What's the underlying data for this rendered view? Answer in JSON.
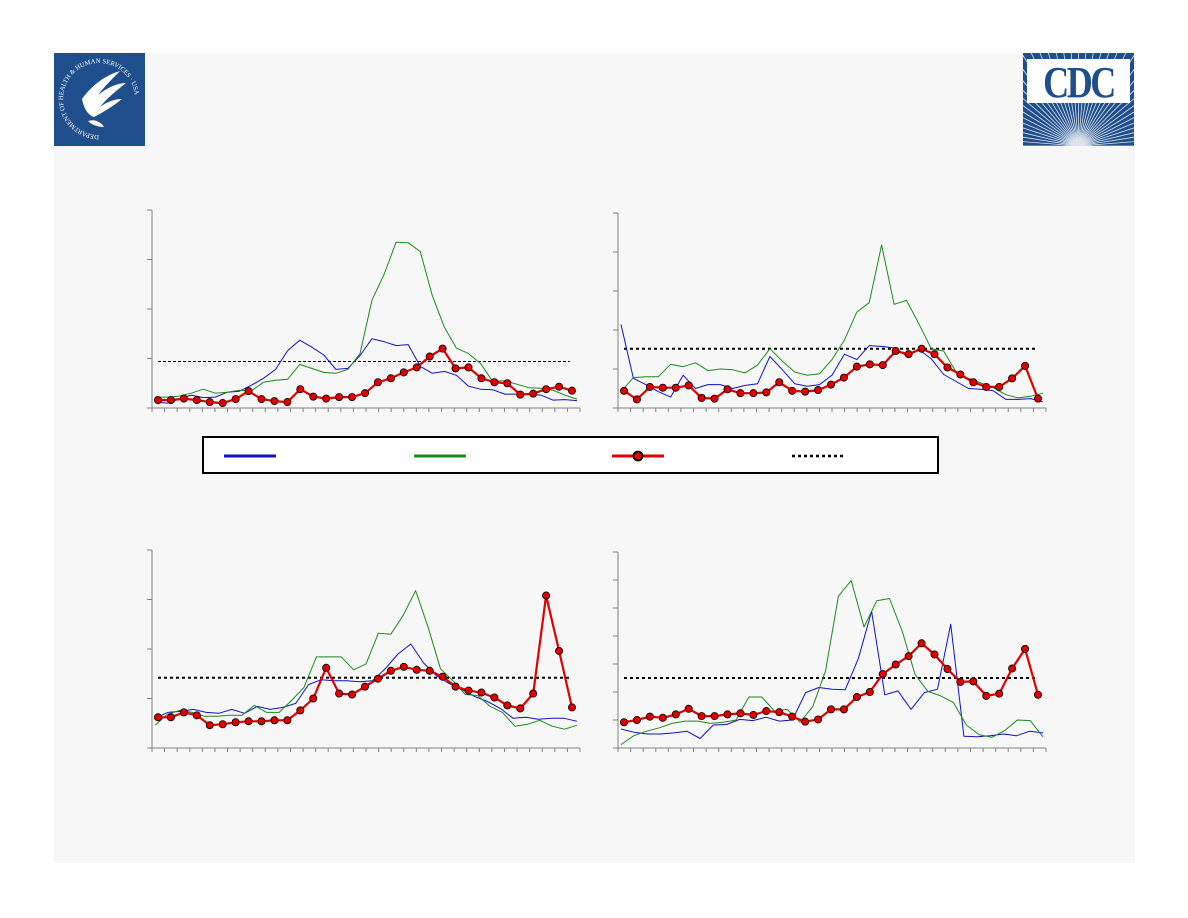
{
  "logos": {
    "hhs": {
      "ring_text": "DEPARTMENT OF HEALTH & HUMAN SERVICES · USA",
      "bg": "#1f4e8c"
    },
    "cdc": {
      "text": "CDC",
      "bg": "#1f4e8c"
    }
  },
  "colors": {
    "blue": "#1010c8",
    "green": "#1a8a1a",
    "red": "#e00000",
    "dotted": "#000000",
    "axis": "#808080"
  },
  "legend": [
    {
      "key": "blue",
      "style": "line",
      "label": ""
    },
    {
      "key": "green",
      "style": "line",
      "label": ""
    },
    {
      "key": "red",
      "style": "line-marker",
      "label": ""
    },
    {
      "key": "dotted",
      "style": "dotted",
      "label": ""
    }
  ],
  "chart_data": [
    {
      "type": "line",
      "title": "",
      "xlabel": "",
      "ylabel": "",
      "ylim": [
        0,
        4
      ],
      "yticks": [
        0,
        1,
        2,
        3,
        4
      ],
      "n_xticks": 34,
      "threshold": 0.94,
      "series": [
        {
          "key": "blue",
          "values": [
            0.12,
            0.1,
            0.18,
            0.26,
            0.21,
            0.22,
            0.32,
            0.34,
            0.46,
            0.6,
            0.78,
            1.16,
            1.37,
            1.23,
            1.07,
            0.78,
            0.8,
            1.06,
            1.4,
            1.34,
            1.26,
            1.28,
            0.84,
            0.7,
            0.74,
            0.66,
            0.44,
            0.38,
            0.37,
            0.28,
            0.28,
            0.28,
            0.26,
            0.16,
            0.17,
            0.15
          ]
        },
        {
          "key": "green",
          "values": [
            0.22,
            0.22,
            0.24,
            0.3,
            0.38,
            0.3,
            0.32,
            0.36,
            0.35,
            0.52,
            0.56,
            0.58,
            0.88,
            0.8,
            0.72,
            0.7,
            0.78,
            1.1,
            2.18,
            2.7,
            3.35,
            3.34,
            3.16,
            2.27,
            1.63,
            1.21,
            1.1,
            0.9,
            0.54,
            0.55,
            0.48,
            0.41,
            0.4,
            0.36,
            0.26,
            0.18
          ]
        },
        {
          "key": "red",
          "markers": true,
          "values": [
            0.16,
            0.16,
            0.19,
            0.16,
            0.12,
            0.1,
            0.18,
            0.34,
            0.18,
            0.14,
            0.12,
            0.38,
            0.23,
            0.19,
            0.22,
            0.22,
            0.3,
            0.52,
            0.6,
            0.72,
            0.82,
            1.04,
            1.2,
            0.8,
            0.82,
            0.6,
            0.52,
            0.5,
            0.27,
            0.29,
            0.38,
            0.43,
            0.35
          ]
        }
      ]
    },
    {
      "type": "line",
      "title": "",
      "xlabel": "",
      "ylabel": "",
      "ylim": [
        0,
        5
      ],
      "yticks": [
        0,
        1,
        2,
        3,
        4,
        5
      ],
      "n_xticks": 34,
      "threshold": 1.52,
      "series": [
        {
          "key": "blue",
          "values": [
            2.14,
            0.76,
            0.6,
            0.42,
            0.28,
            0.84,
            0.5,
            0.6,
            0.6,
            0.5,
            0.58,
            0.62,
            1.32,
            0.98,
            0.62,
            0.56,
            0.6,
            0.84,
            1.38,
            1.24,
            1.6,
            1.58,
            1.54,
            1.34,
            1.5,
            1.26,
            0.86,
            0.68,
            0.5,
            0.48,
            0.44,
            0.22,
            0.22,
            0.24,
            0.16
          ]
        },
        {
          "key": "green",
          "values": [
            0.42,
            0.78,
            0.8,
            0.8,
            1.12,
            1.06,
            1.16,
            0.96,
            1.0,
            0.98,
            0.9,
            1.1,
            1.52,
            1.2,
            0.92,
            0.84,
            0.88,
            1.24,
            1.74,
            2.46,
            2.7,
            4.18,
            2.66,
            2.76,
            2.16,
            1.52,
            1.46,
            0.92,
            0.76,
            0.64,
            0.52,
            0.34,
            0.26,
            0.3,
            0.38
          ]
        },
        {
          "key": "red",
          "markers": true,
          "values": [
            0.44,
            0.22,
            0.54,
            0.52,
            0.52,
            0.58,
            0.26,
            0.24,
            0.48,
            0.38,
            0.38,
            0.4,
            0.66,
            0.44,
            0.42,
            0.46,
            0.6,
            0.78,
            1.06,
            1.12,
            1.1,
            1.46,
            1.38,
            1.52,
            1.38,
            1.04,
            0.86,
            0.66,
            0.54,
            0.54,
            0.76,
            1.08,
            0.24
          ]
        }
      ]
    },
    {
      "type": "line",
      "title": "",
      "xlabel": "",
      "ylabel": "",
      "ylim": [
        0,
        4
      ],
      "yticks": [
        0,
        1,
        2,
        3,
        4
      ],
      "n_xticks": 34,
      "threshold": 1.42,
      "series": [
        {
          "key": "blue",
          "values": [
            0.6,
            0.72,
            0.74,
            0.78,
            0.72,
            0.7,
            0.78,
            0.7,
            0.84,
            0.78,
            0.82,
            0.9,
            1.28,
            1.38,
            1.36,
            1.36,
            1.34,
            1.36,
            1.6,
            1.9,
            2.1,
            1.72,
            1.46,
            1.3,
            1.18,
            1.04,
            0.94,
            0.8,
            0.6,
            0.62,
            0.58,
            0.6,
            0.6,
            0.54
          ]
        },
        {
          "key": "green",
          "values": [
            0.46,
            0.68,
            0.76,
            0.72,
            0.64,
            0.64,
            0.66,
            0.66,
            0.86,
            0.72,
            0.72,
            0.96,
            1.22,
            1.84,
            1.84,
            1.84,
            1.58,
            1.7,
            2.32,
            2.3,
            2.68,
            3.18,
            2.44,
            1.6,
            1.36,
            1.08,
            1.06,
            0.84,
            0.72,
            0.44,
            0.48,
            0.56,
            0.44,
            0.38,
            0.46
          ]
        },
        {
          "key": "red",
          "markers": true,
          "values": [
            0.62,
            0.62,
            0.72,
            0.66,
            0.46,
            0.48,
            0.52,
            0.54,
            0.54,
            0.56,
            0.56,
            0.76,
            1.0,
            1.62,
            1.1,
            1.08,
            1.24,
            1.4,
            1.56,
            1.64,
            1.58,
            1.56,
            1.44,
            1.24,
            1.16,
            1.12,
            1.02,
            0.86,
            0.8,
            1.1,
            3.08,
            1.96,
            0.82
          ]
        }
      ]
    },
    {
      "type": "line",
      "title": "",
      "xlabel": "",
      "ylabel": "",
      "ylim": [
        0,
        7
      ],
      "yticks": [
        0,
        1,
        2,
        3,
        4,
        5,
        6,
        7
      ],
      "n_xticks": 34,
      "threshold": 2.5,
      "series": [
        {
          "key": "blue",
          "values": [
            0.68,
            0.56,
            0.5,
            0.5,
            0.54,
            0.6,
            0.34,
            0.82,
            0.84,
            1.02,
            0.98,
            1.1,
            0.96,
            1.0,
            1.98,
            2.16,
            2.1,
            2.08,
            3.2,
            4.88,
            1.9,
            2.04,
            1.38,
            1.98,
            2.1,
            4.42,
            0.42,
            0.4,
            0.44,
            0.5,
            0.44,
            0.6,
            0.54
          ]
        },
        {
          "key": "green",
          "values": [
            0.12,
            0.44,
            0.6,
            0.72,
            0.88,
            0.96,
            0.96,
            0.88,
            0.92,
            1.0,
            1.82,
            1.82,
            1.32,
            1.38,
            0.92,
            1.48,
            2.76,
            5.42,
            5.98,
            4.32,
            5.26,
            5.34,
            4.16,
            2.62,
            2.02,
            1.86,
            1.62,
            0.82,
            0.48,
            0.38,
            0.62,
            1.0,
            0.98,
            0.4
          ]
        },
        {
          "key": "red",
          "markers": true,
          "values": [
            0.92,
            1.0,
            1.12,
            1.08,
            1.2,
            1.4,
            1.14,
            1.14,
            1.2,
            1.24,
            1.18,
            1.32,
            1.28,
            1.12,
            0.94,
            1.02,
            1.38,
            1.38,
            1.82,
            2.0,
            2.64,
            2.98,
            3.28,
            3.74,
            3.34,
            2.82,
            2.36,
            2.38,
            1.86,
            1.94,
            2.84,
            3.54,
            1.9
          ]
        }
      ]
    }
  ]
}
